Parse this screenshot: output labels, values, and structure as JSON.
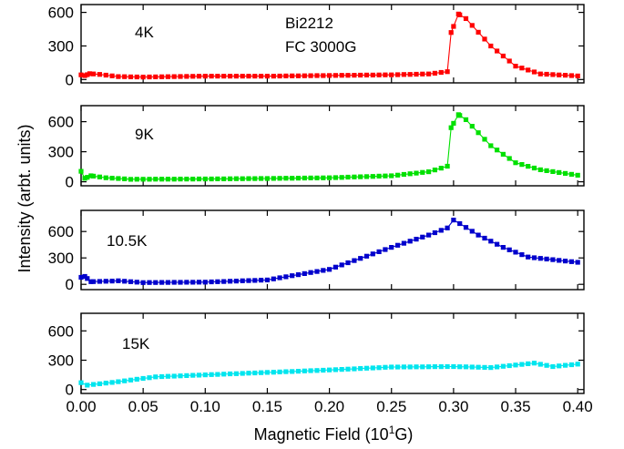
{
  "chart_data": {
    "type": "line",
    "xlabel": "Magnetic Field (10",
    "xlabel_sup": "1",
    "xlabel_end": "G)",
    "ylabel": "Intensity (arbt. units)",
    "xlim": [
      0.0,
      0.405
    ],
    "x_ticks": [
      0.0,
      0.05,
      0.1,
      0.15,
      0.2,
      0.25,
      0.3,
      0.35,
      0.4
    ],
    "x_tick_labels": [
      "0.00",
      "0.05",
      "0.10",
      "0.15",
      "0.20",
      "0.25",
      "0.30",
      "0.35",
      "0.40"
    ],
    "grid": false,
    "annotations": [
      "Bi2212",
      "FC 3000G"
    ],
    "panels": [
      {
        "label": "4K",
        "color": "#ff0000",
        "ylim": [
          -30,
          670
        ],
        "y_ticks": [
          0,
          300,
          600
        ],
        "y_tick_labels": [
          "0",
          "300",
          "600"
        ],
        "anchors": [
          [
            0,
            42
          ],
          [
            0.003,
            35
          ],
          [
            0.007,
            52
          ],
          [
            0.015,
            46
          ],
          [
            0.03,
            26
          ],
          [
            0.05,
            22
          ],
          [
            0.1,
            30
          ],
          [
            0.15,
            30
          ],
          [
            0.2,
            36
          ],
          [
            0.25,
            42
          ],
          [
            0.28,
            50
          ],
          [
            0.295,
            70
          ],
          [
            0.298,
            420
          ],
          [
            0.304,
            585
          ],
          [
            0.31,
            545
          ],
          [
            0.33,
            300
          ],
          [
            0.35,
            120
          ],
          [
            0.37,
            50
          ],
          [
            0.4,
            32
          ]
        ]
      },
      {
        "label": "9K",
        "color": "#00e000",
        "ylim": [
          -40,
          760
        ],
        "y_ticks": [
          0,
          300,
          600
        ],
        "y_tick_labels": [
          "0",
          "300",
          "600"
        ],
        "anchors": [
          [
            0,
            105
          ],
          [
            0.003,
            35
          ],
          [
            0.008,
            60
          ],
          [
            0.02,
            40
          ],
          [
            0.04,
            25
          ],
          [
            0.1,
            28
          ],
          [
            0.15,
            33
          ],
          [
            0.2,
            40
          ],
          [
            0.25,
            60
          ],
          [
            0.28,
            100
          ],
          [
            0.295,
            155
          ],
          [
            0.298,
            540
          ],
          [
            0.304,
            670
          ],
          [
            0.31,
            620
          ],
          [
            0.33,
            360
          ],
          [
            0.35,
            190
          ],
          [
            0.37,
            120
          ],
          [
            0.4,
            65
          ]
        ]
      },
      {
        "label": "10.5K",
        "color": "#0000cc",
        "ylim": [
          -60,
          840
        ],
        "y_ticks": [
          0,
          300,
          600
        ],
        "y_tick_labels": [
          "0",
          "300",
          "600"
        ],
        "anchors": [
          [
            0,
            80
          ],
          [
            0.003,
            90
          ],
          [
            0.008,
            30
          ],
          [
            0.03,
            40
          ],
          [
            0.05,
            20
          ],
          [
            0.1,
            25
          ],
          [
            0.15,
            50
          ],
          [
            0.2,
            170
          ],
          [
            0.25,
            420
          ],
          [
            0.28,
            560
          ],
          [
            0.295,
            640
          ],
          [
            0.3,
            730
          ],
          [
            0.305,
            690
          ],
          [
            0.32,
            560
          ],
          [
            0.34,
            420
          ],
          [
            0.36,
            310
          ],
          [
            0.4,
            250
          ]
        ]
      },
      {
        "label": "15K",
        "color": "#00e5ee",
        "ylim": [
          -40,
          780
        ],
        "y_ticks": [
          0,
          300,
          600
        ],
        "y_tick_labels": [
          "0",
          "300",
          "600"
        ],
        "anchors": [
          [
            0,
            70
          ],
          [
            0.005,
            45
          ],
          [
            0.03,
            80
          ],
          [
            0.06,
            130
          ],
          [
            0.1,
            150
          ],
          [
            0.15,
            175
          ],
          [
            0.2,
            200
          ],
          [
            0.25,
            230
          ],
          [
            0.3,
            235
          ],
          [
            0.33,
            225
          ],
          [
            0.365,
            270
          ],
          [
            0.38,
            235
          ],
          [
            0.4,
            260
          ]
        ]
      }
    ],
    "point_step": 0.005
  }
}
